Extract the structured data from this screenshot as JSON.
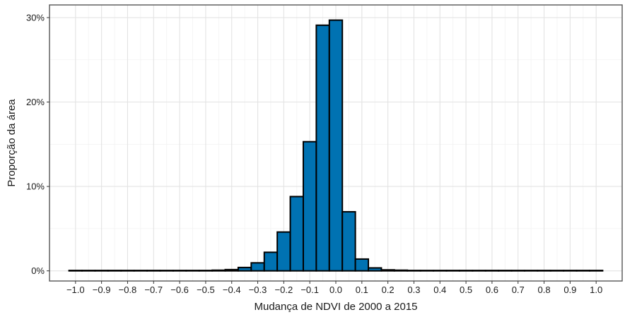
{
  "chart_data": {
    "type": "bar",
    "xlabel": "Mudança de NDVI de 2000 a 2015",
    "ylabel": "Proporção da área",
    "x_ticks": [
      "-1.0",
      "-0.9",
      "-0.8",
      "-0.7",
      "-0.6",
      "-0.5",
      "-0.4",
      "-0.3",
      "-0.2",
      "-0.1",
      "0.0",
      "0.1",
      "0.2",
      "0.3",
      "0.4",
      "0.5",
      "0.6",
      "0.7",
      "0.8",
      "0.9",
      "1.0"
    ],
    "y_ticks": [
      "0%",
      "10%",
      "20%",
      "30%"
    ],
    "xlim": [
      -1.1,
      1.1
    ],
    "ylim": [
      -1.2,
      31.5
    ],
    "grid": true,
    "bar_color": "#0072B2",
    "bin_width": 0.05,
    "bin_centers": [
      -1.0,
      -0.95,
      -0.9,
      -0.85,
      -0.8,
      -0.75,
      -0.7,
      -0.65,
      -0.6,
      -0.55,
      -0.5,
      -0.45,
      -0.4,
      -0.35,
      -0.3,
      -0.25,
      -0.2,
      -0.15,
      -0.1,
      -0.05,
      0.0,
      0.05,
      0.1,
      0.15,
      0.2,
      0.25,
      0.3,
      0.35,
      0.4,
      0.45,
      0.5,
      0.55,
      0.6,
      0.65,
      0.7,
      0.75,
      0.8,
      0.85,
      0.9,
      0.95,
      1.0
    ],
    "values": [
      0.05,
      0.05,
      0.05,
      0.05,
      0.05,
      0.05,
      0.05,
      0.05,
      0.05,
      0.05,
      0.05,
      0.08,
      0.15,
      0.4,
      0.95,
      2.2,
      4.6,
      8.8,
      15.3,
      29.1,
      29.7,
      7.0,
      1.4,
      0.35,
      0.12,
      0.08,
      0.05,
      0.05,
      0.05,
      0.05,
      0.05,
      0.05,
      0.05,
      0.05,
      0.05,
      0.05,
      0.05,
      0.05,
      0.05,
      0.05,
      0.05
    ]
  }
}
